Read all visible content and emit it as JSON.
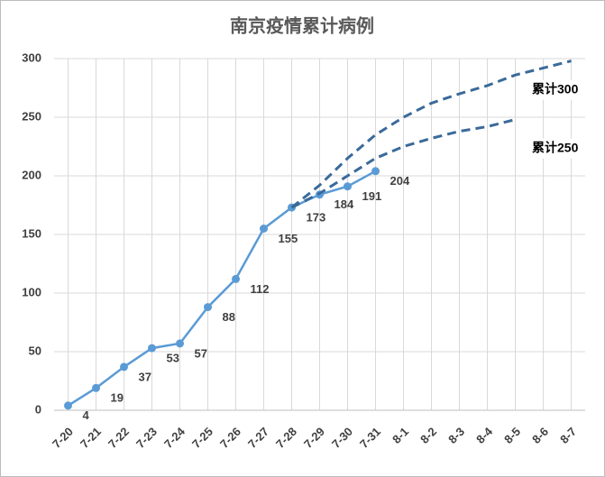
{
  "chart_data": {
    "type": "line",
    "title": "南京疫情累计病例",
    "categories": [
      "7-20",
      "7-21",
      "7-22",
      "7-23",
      "7-24",
      "7-25",
      "7-26",
      "7-27",
      "7-28",
      "7-29",
      "7-30",
      "7-31",
      "8-1",
      "8-2",
      "8-3",
      "8-4",
      "8-5",
      "8-6",
      "8-7"
    ],
    "series": [
      {
        "name": null,
        "color": "#5b9bd5",
        "style": "solid",
        "markers": true,
        "show_values": true,
        "values": [
          4,
          19,
          37,
          53,
          57,
          88,
          112,
          155,
          173,
          184,
          191,
          204,
          null,
          null,
          null,
          null,
          null,
          null,
          null
        ]
      },
      {
        "name": "累计300",
        "color": "#3a6a9a",
        "style": "dashed",
        "markers": false,
        "show_values": false,
        "values": [
          null,
          null,
          null,
          null,
          null,
          null,
          null,
          null,
          173,
          192,
          215,
          235,
          250,
          262,
          270,
          277,
          286,
          292,
          298
        ]
      },
      {
        "name": "累计250",
        "color": "#3a6a9a",
        "style": "dashed",
        "markers": false,
        "show_values": false,
        "values": [
          null,
          null,
          null,
          null,
          null,
          null,
          null,
          null,
          173,
          185,
          200,
          215,
          225,
          232,
          238,
          242,
          248,
          null,
          null
        ]
      }
    ],
    "ylim": [
      0,
      300
    ],
    "yticks": [
      0,
      50,
      100,
      150,
      200,
      250,
      300
    ],
    "grid": true
  }
}
